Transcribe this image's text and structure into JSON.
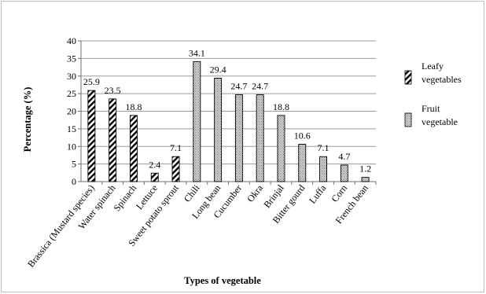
{
  "chart_data": {
    "type": "bar",
    "xlabel": "Types of vegetable",
    "ylabel": "Percentage (%)",
    "ylim": [
      0,
      40
    ],
    "yticks": [
      0,
      5,
      10,
      15,
      20,
      25,
      30,
      35,
      40
    ],
    "grid": true,
    "legend_position": "right",
    "categories": [
      "Brassica (Mustard species)",
      "Water spinach",
      "Spinach",
      "Lettuce",
      "Sweet potato sprout",
      "Chili",
      "Long bean",
      "Cucumber",
      "Okra",
      "Brinjal",
      "Bitter gourd",
      "Luffa",
      "Corn",
      "French bean"
    ],
    "series": [
      {
        "name": "Leafy vegetables",
        "pattern": "diagonal-hatch",
        "values": [
          25.9,
          23.5,
          18.8,
          2.4,
          7.1,
          null,
          null,
          null,
          null,
          null,
          null,
          null,
          null,
          null
        ]
      },
      {
        "name": "Fruit vegetable",
        "pattern": "dotted",
        "values": [
          null,
          null,
          null,
          null,
          null,
          34.1,
          29.4,
          24.7,
          24.7,
          18.8,
          10.6,
          7.1,
          4.7,
          1.2
        ]
      }
    ],
    "data_labels": [
      "25.9",
      "23.5",
      "18.8",
      "2.4",
      "7.1",
      "34.1",
      "29.4",
      "24.7",
      "24.7",
      "18.8",
      "10.6",
      "7.1",
      "4.7",
      "1.2"
    ],
    "legend": [
      {
        "lines": [
          "Leafy",
          "vegetables"
        ],
        "pattern": "diagonal-hatch"
      },
      {
        "lines": [
          "Fruit",
          "vegetable"
        ],
        "pattern": "dotted"
      }
    ]
  }
}
